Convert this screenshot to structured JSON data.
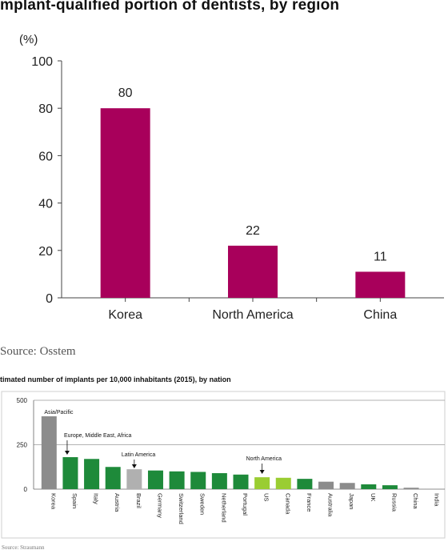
{
  "header": {
    "title": "mplant-qualified portion of dentists, by region"
  },
  "footer": {
    "source": "Source: Osstem",
    "source2": "Source: Straumann"
  },
  "chart_data": [
    {
      "type": "bar",
      "title": "mplant-qualified portion of dentists, by region",
      "ylabel": "(%)",
      "categories": [
        "Korea",
        "North America",
        "China"
      ],
      "values": [
        80,
        22,
        11
      ],
      "data_labels": [
        "80",
        "22",
        "11"
      ],
      "ylim": [
        0,
        100
      ],
      "yticks": [
        0,
        20,
        40,
        60,
        80,
        100
      ],
      "bar_color": "#A8005B",
      "grid": false
    },
    {
      "type": "bar",
      "title": "timated number of implants per 10,000 inhabitants (2015), by nation",
      "ylim": [
        0,
        500
      ],
      "yticks": [
        0,
        250,
        500
      ],
      "grid": true,
      "categories": [
        "Korea",
        "Spain",
        "Italy",
        "Austria",
        "Brazil",
        "Germany",
        "Switzerland",
        "Sweden",
        "Netherland",
        "Portugal",
        "US",
        "Canada",
        "France",
        "Australia",
        "Japan",
        "UK",
        "Russia",
        "China",
        "India"
      ],
      "tick_labels": [
        "Korea",
        "Spain",
        "Italy",
        "Austria",
        "Brazil",
        "Germany",
        "Switzerland",
        "Sweden",
        "Netherland",
        "Portugal",
        "US",
        "Canada",
        "France",
        "Australia",
        "Japan",
        "UK",
        "Russia",
        "China",
        "India"
      ],
      "values": [
        410,
        180,
        170,
        125,
        112,
        105,
        100,
        97,
        90,
        82,
        67,
        64,
        58,
        42,
        35,
        27,
        22,
        8,
        2
      ],
      "region_of_bar": [
        "Asia/Pacific",
        "Europe, Middle East, Africa",
        "Europe, Middle East, Africa",
        "Europe, Middle East, Africa",
        "Latin America",
        "Europe, Middle East, Africa",
        "Europe, Middle East, Africa",
        "Europe, Middle East, Africa",
        "Europe, Middle East, Africa",
        "Europe, Middle East, Africa",
        "North America",
        "North America",
        "Europe, Middle East, Africa",
        "Asia/Pacific",
        "Asia/Pacific",
        "Europe, Middle East, Africa",
        "Europe, Middle East, Africa",
        "Asia/Pacific",
        "Asia/Pacific"
      ],
      "annotations": [
        "Asia/Pacific",
        "Europe, Middle East, Africa",
        "Latin America",
        "North America"
      ],
      "colors": {
        "Asia/Pacific": "#8C8C8C",
        "Europe, Middle East, Africa": "#1E8A3A",
        "Latin America": "#B0B0B0",
        "North America": "#9ACD32"
      }
    }
  ]
}
